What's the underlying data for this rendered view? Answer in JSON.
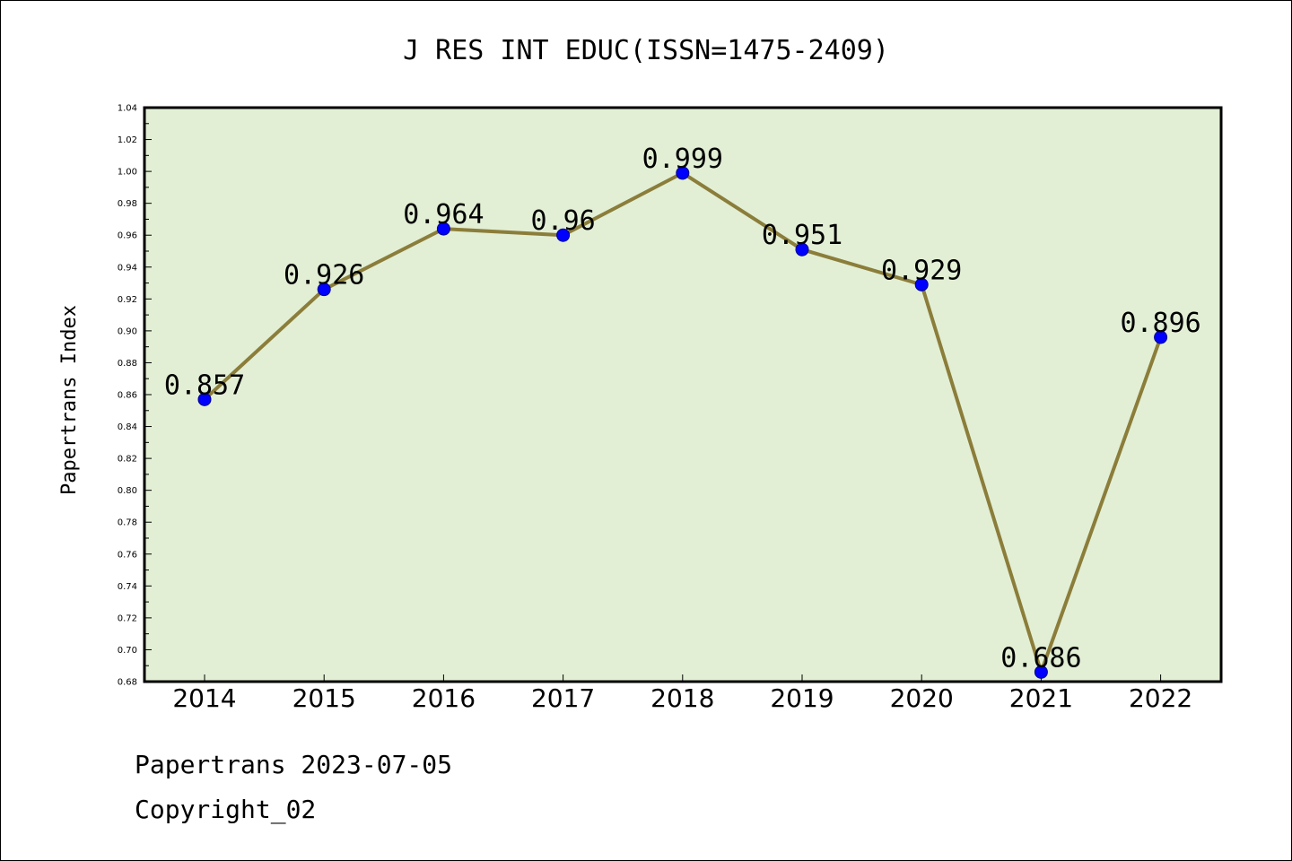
{
  "chart_data": {
    "type": "line",
    "title": "J RES INT EDUC(ISSN=1475-2409)",
    "xlabel": "",
    "ylabel": "Papertrans Index",
    "categories": [
      "2014",
      "2015",
      "2016",
      "2017",
      "2018",
      "2019",
      "2020",
      "2021",
      "2022"
    ],
    "series": [
      {
        "values": [
          0.857,
          0.926,
          0.964,
          0.96,
          0.999,
          0.951,
          0.929,
          0.686,
          0.896
        ],
        "labels": [
          "0.857",
          "0.926",
          "0.964",
          "0.96",
          "0.999",
          "0.951",
          "0.929",
          "0.686",
          "0.896"
        ]
      }
    ],
    "ylim": [
      0.68,
      1.04
    ],
    "yticks": [
      "0.68",
      "0.70",
      "0.72",
      "0.74",
      "0.76",
      "0.78",
      "0.80",
      "0.82",
      "0.84",
      "0.86",
      "0.88",
      "0.90",
      "0.92",
      "0.94",
      "0.96",
      "0.98",
      "1.00",
      "1.02",
      "1.04"
    ],
    "grid": false,
    "colors": {
      "plot_background": "#e2efd5",
      "line": "#8b7d3a",
      "marker": "#0000ff"
    }
  },
  "footer": {
    "line1": "Papertrans 2023-07-05",
    "line2": "Copyright_02"
  }
}
